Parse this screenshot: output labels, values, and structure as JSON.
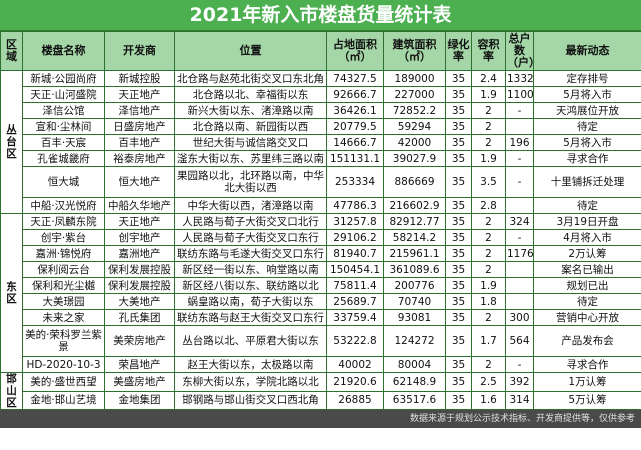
{
  "title": "2021年新入市楼盘货量统计表",
  "headers": {
    "region": "区域",
    "name": "楼盘名称",
    "developer": "开发商",
    "location": "位置",
    "land_area": "占地面积（㎡）",
    "build_area": "建筑面积（㎡）",
    "green": "绿化率",
    "far": "容积率",
    "households": "总户数（户）",
    "news": "最新动态"
  },
  "regions": {
    "congtai": "丛台区",
    "dong": "东区",
    "hanshan": "邯山区"
  },
  "rows": [
    {
      "name": "新城·公园尚府",
      "developer": "新城控股",
      "location": "北仓路与赵苑北街交叉口东北角",
      "land_area": "74327.5",
      "build_area": "189000",
      "green": "35",
      "far": "2.4",
      "households": "1332",
      "news": "定存排号"
    },
    {
      "name": "天正·山河盛院",
      "developer": "天正地产",
      "location": "北仓路以北、幸福街以东",
      "land_area": "92666.7",
      "build_area": "227000",
      "green": "35",
      "far": "1.9",
      "households": "1100",
      "news": "5月将入市"
    },
    {
      "name": "泽信公馆",
      "developer": "泽信地产",
      "location": "新兴大街以东、渚漳路以南",
      "land_area": "36426.1",
      "build_area": "72852.2",
      "green": "35",
      "far": "2",
      "households": "-",
      "news": "天鸿展位开放"
    },
    {
      "name": "宣和·尘林间",
      "developer": "日盛房地产",
      "location": "北仓路以南、新园街以西",
      "land_area": "20779.5",
      "build_area": "59294",
      "green": "35",
      "far": "2",
      "households": "",
      "news": "待定"
    },
    {
      "name": "百丰·天宸",
      "developer": "百丰地产",
      "location": "世纪大街与诚信路交叉口",
      "land_area": "14666.7",
      "build_area": "42000",
      "green": "35",
      "far": "2",
      "households": "196",
      "news": "5月将入市"
    },
    {
      "name": "孔雀城畿府",
      "developer": "裕泰房地产",
      "location": "滏东大街以东、苏里纬三路以南",
      "land_area": "151131.1",
      "build_area": "39027.9",
      "green": "35",
      "far": "1.9",
      "households": "-",
      "news": "寻求合作"
    },
    {
      "name": "恒大城",
      "developer": "恒大地产",
      "location": "果园路以北，北环路以南，中华北大街以西",
      "land_area": "253334",
      "build_area": "886669",
      "green": "35",
      "far": "3.5",
      "households": "-",
      "news": "十里铺拆迁处理"
    },
    {
      "name": "中船·汉光悦府",
      "developer": "中船久华地产",
      "location": "中华大街以西，渚漳路以南",
      "land_area": "47786.3",
      "build_area": "216602.9",
      "green": "35",
      "far": "2.8",
      "households": "",
      "news": "待定"
    },
    {
      "name": "天正·凤麟东院",
      "developer": "天正地产",
      "location": "人民路与荀子大街交叉口北行",
      "land_area": "31257.8",
      "build_area": "82912.77",
      "green": "35",
      "far": "2",
      "households": "324",
      "news": "3月19日开盘"
    },
    {
      "name": "创宇·紫台",
      "developer": "创宇地产",
      "location": "人民路与荀子大街交叉口东行",
      "land_area": "29106.2",
      "build_area": "58214.2",
      "green": "35",
      "far": "2",
      "households": "-",
      "news": "4月将入市"
    },
    {
      "name": "嘉洲·锦悦府",
      "developer": "嘉洲地产",
      "location": "联纺东路与毛遂大街交叉口东行",
      "land_area": "81940.7",
      "build_area": "215961.1",
      "green": "35",
      "far": "2",
      "households": "1176",
      "news": "2万认筹"
    },
    {
      "name": "保利阅云台",
      "developer": "保利发展控股",
      "location": "新区经一街以东、响堂路以南",
      "land_area": "150454.1",
      "build_area": "361089.6",
      "green": "35",
      "far": "2",
      "households": "",
      "news": "案名已输出"
    },
    {
      "name": "保利和光尘樾",
      "developer": "保利发展控股",
      "location": "新区经八街以东、联纺路以北",
      "land_area": "75811.4",
      "build_area": "200776",
      "green": "35",
      "far": "1.9",
      "households": "",
      "news": "规划已出"
    },
    {
      "name": "大美璟园",
      "developer": "大美地产",
      "location": "蜗皇路以南，荀子大街以东",
      "land_area": "25689.7",
      "build_area": "70740",
      "green": "35",
      "far": "1.8",
      "households": "",
      "news": "待定"
    },
    {
      "name": "未来之家",
      "developer": "孔氏集团",
      "location": "联纺东路与赵王大街交叉口东行",
      "land_area": "33759.4",
      "build_area": "93081",
      "green": "35",
      "far": "2",
      "households": "300",
      "news": "营销中心开放"
    },
    {
      "name": "美的·荣科罗兰紫景",
      "developer": "美荣房地产",
      "location": "丛台路以北、平原君大街以东",
      "land_area": "53222.8",
      "build_area": "124272",
      "green": "35",
      "far": "1.7",
      "households": "564",
      "news": "产品发布会"
    },
    {
      "name": "HD-2020-10-3",
      "developer": "荣昌地产",
      "location": "赵王大街以东，太极路以南",
      "land_area": "40002",
      "build_area": "80004",
      "green": "35",
      "far": "2",
      "households": "-",
      "news": "寻求合作"
    },
    {
      "name": "美的·盛世西望",
      "developer": "美盛房地产",
      "location": "东柳大街以东，学院北路以北",
      "land_area": "21920.6",
      "build_area": "62148.9",
      "green": "35",
      "far": "2.5",
      "households": "392",
      "news": "1万认筹"
    },
    {
      "name": "金地·邯山艺境",
      "developer": "金地集团",
      "location": "邯钢路与邯山街交叉口西北角",
      "land_area": "26885",
      "build_area": "63517.6",
      "green": "35",
      "far": "1.6",
      "households": "314",
      "news": "5万认筹"
    }
  ],
  "footer": "数据来源于规划公示技术指标、开发商提供等，仅供参考"
}
